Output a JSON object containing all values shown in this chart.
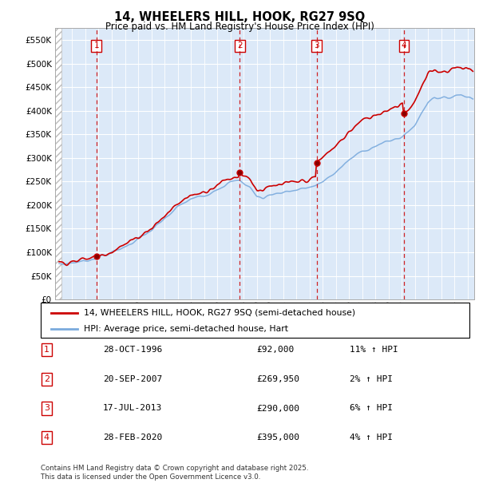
{
  "title": "14, WHEELERS HILL, HOOK, RG27 9SQ",
  "subtitle": "Price paid vs. HM Land Registry's House Price Index (HPI)",
  "legend_line1": "14, WHEELERS HILL, HOOK, RG27 9SQ (semi-detached house)",
  "legend_line2": "HPI: Average price, semi-detached house, Hart",
  "footer": "Contains HM Land Registry data © Crown copyright and database right 2025.\nThis data is licensed under the Open Government Licence v3.0.",
  "sales": [
    {
      "num": 1,
      "date": "28-OCT-1996",
      "date_x": 1996.83,
      "price": 92000
    },
    {
      "num": 2,
      "date": "20-SEP-2007",
      "date_x": 2007.72,
      "price": 269950
    },
    {
      "num": 3,
      "date": "17-JUL-2013",
      "date_x": 2013.54,
      "price": 290000
    },
    {
      "num": 4,
      "date": "28-FEB-2020",
      "date_x": 2020.16,
      "price": 395000
    }
  ],
  "sale_labels": [
    {
      "num": 1,
      "hpi_pct": "11% ↑ HPI"
    },
    {
      "num": 2,
      "hpi_pct": "2% ↑ HPI"
    },
    {
      "num": 3,
      "hpi_pct": "6% ↑ HPI"
    },
    {
      "num": 4,
      "hpi_pct": "4% ↑ HPI"
    }
  ],
  "hpi_color": "#7aaadd",
  "price_color": "#cc0000",
  "vline_color": "#cc0000",
  "bg_plot": "#dce9f8",
  "ylim": [
    0,
    575000
  ],
  "yticks": [
    0,
    50000,
    100000,
    150000,
    200000,
    250000,
    300000,
    350000,
    400000,
    450000,
    500000,
    550000
  ],
  "xlim_start": 1993.7,
  "xlim_end": 2025.5
}
